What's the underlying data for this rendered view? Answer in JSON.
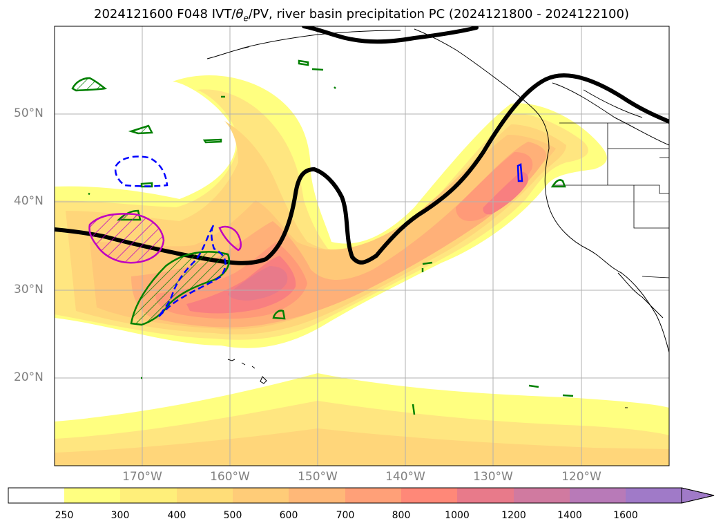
{
  "title": "2024121600 F048 IVT/θ_e/PV, river basin precipitation PC (2024121800 - 2024122100)",
  "title_parts": {
    "prefix": "2024121600 F048 IVT/",
    "theta": "θ",
    "theta_sub": "e",
    "suffix": "/PV, river basin precipitation PC (2024121800 - 2024122100)"
  },
  "map": {
    "lon_range": [
      -180,
      -110
    ],
    "lat_range": [
      10,
      60
    ],
    "lat_labels": [
      {
        "lat": 50,
        "text": "50°N"
      },
      {
        "lat": 40,
        "text": "40°N"
      },
      {
        "lat": 30,
        "text": "30°N"
      },
      {
        "lat": 20,
        "text": "20°N"
      }
    ],
    "lon_labels": [
      {
        "lon": -170,
        "text": "170°W"
      },
      {
        "lon": -160,
        "text": "160°W"
      },
      {
        "lon": -150,
        "text": "150°W"
      },
      {
        "lon": -140,
        "text": "140°W"
      },
      {
        "lon": -130,
        "text": "130°W"
      },
      {
        "lon": -120,
        "text": "120°W"
      }
    ],
    "colors": {
      "ivt_250": "#ffff80",
      "ivt_300": "#ffe680",
      "ivt_400": "#ffd67a",
      "ivt_500": "#ffc878",
      "ivt_600": "#ffb078",
      "ivt_700": "#ff9a78",
      "ivt_800": "#f87f80",
      "theta_line": "#000000",
      "pc_positive": "#008000",
      "pc_negative": "#0000ff",
      "pv_line": "#c000c0",
      "coast": "#000000"
    }
  },
  "colorbar": {
    "levels": [
      "250",
      "300",
      "400",
      "500",
      "600",
      "700",
      "800",
      "1000",
      "1200",
      "1400",
      "1600"
    ],
    "colors": [
      "#ffffff",
      "#ffff80",
      "#ffef7a",
      "#ffdd78",
      "#ffcc78",
      "#ffb878",
      "#ffa078",
      "#ff8878",
      "#e87a8a",
      "#d07aa0",
      "#b87ab8",
      "#a07ac8"
    ]
  }
}
